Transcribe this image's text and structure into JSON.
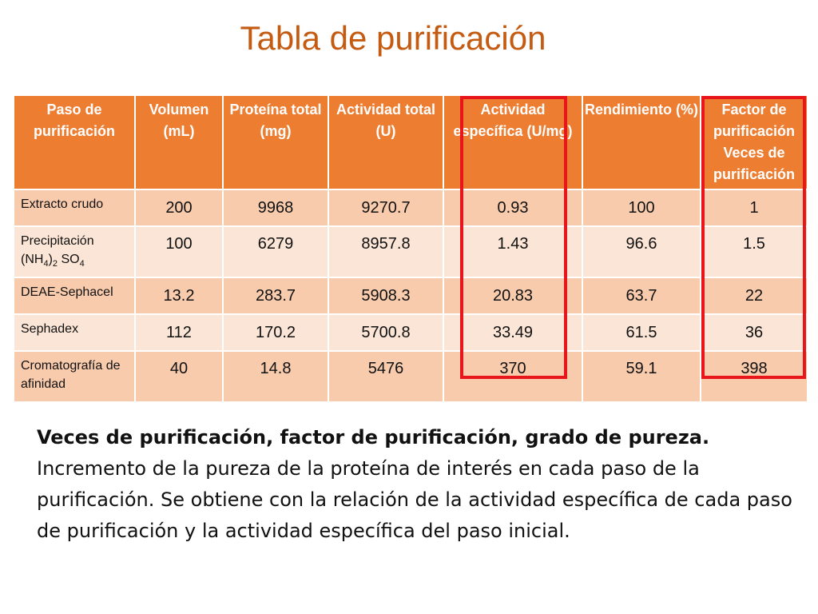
{
  "slide": {
    "title": "Tabla de purificación"
  },
  "table": {
    "headers": [
      "Paso de purificación",
      "Volumen (mL)",
      "Proteína total (mg)",
      "Actividad total (U)",
      "Actividad específica (U/mg)",
      "Rendimiento (%)",
      "Factor de purificación Veces de purificación"
    ],
    "rows": [
      {
        "step": "Extracto crudo",
        "volume": "200",
        "protein": "9968",
        "activity": "9270.7",
        "specific": "0.93",
        "yield": "100",
        "factor": "1"
      },
      {
        "step_main": "Precipitación",
        "step_formula_a": "(NH",
        "step_sub_a": "4",
        "step_formula_b": ")",
        "step_sub_b": "2",
        "step_formula_c": " SO",
        "step_sub_c": "4",
        "volume": "100",
        "protein": "6279",
        "activity": "8957.8",
        "specific": "1.43",
        "yield": "96.6",
        "factor": "1.5"
      },
      {
        "step": "DEAE-Sephacel",
        "volume": "13.2",
        "protein": "283.7",
        "activity": "5908.3",
        "specific": "20.83",
        "yield": "63.7",
        "factor": "22"
      },
      {
        "step": "Sephadex",
        "volume": "112",
        "protein": "170.2",
        "activity": "5700.8",
        "specific": "33.49",
        "yield": "61.5",
        "factor": "36"
      },
      {
        "step": "Cromatografía de afinidad",
        "volume": "40",
        "protein": "14.8",
        "activity": "5476",
        "specific": "370",
        "yield": "59.1",
        "factor": "398"
      }
    ]
  },
  "description": {
    "lead": "Veces de purificación, factor de purificación, grado de pureza.",
    "body": "Incremento de la pureza de la proteína de interés en cada paso de la purificación. Se obtiene con la relación de la actividad específica de cada paso de purificación y la actividad específica del paso inicial."
  },
  "colors": {
    "title": "#c55a11",
    "header_bg": "#ed7d31",
    "row_dark": "#f8cbad",
    "row_light": "#fbe5d6",
    "highlight": "#e8161b"
  }
}
